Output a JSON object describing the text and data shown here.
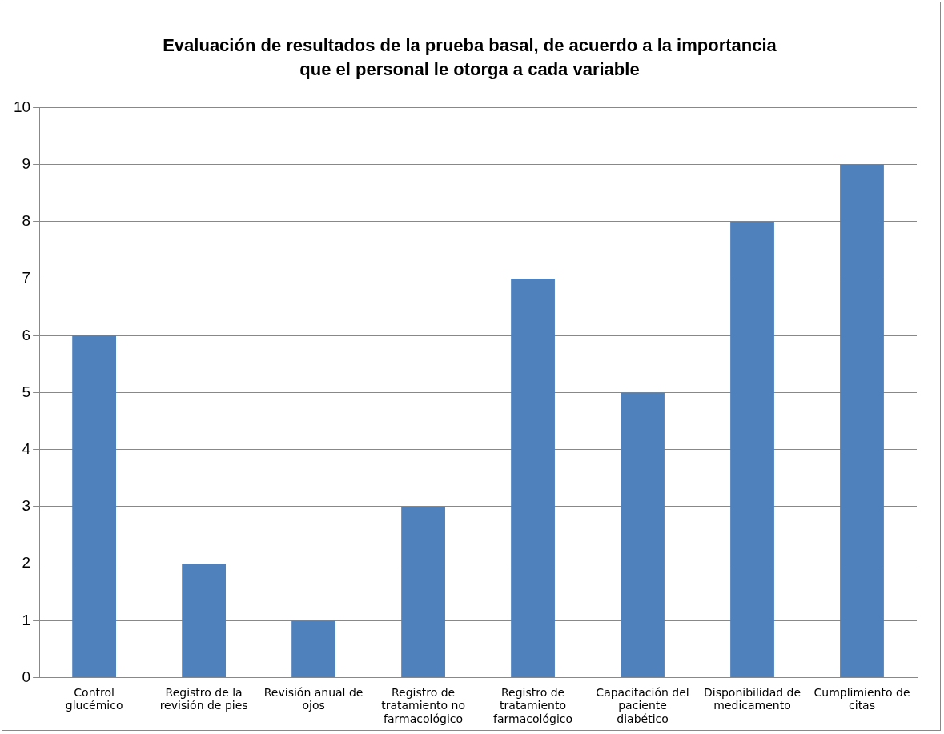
{
  "chart_data": {
    "type": "bar",
    "title": "Evaluación de resultados de la prueba basal, de acuerdo a la importancia que el personal le otorga a cada variable",
    "categories": [
      "Control glucémico",
      "Registro de la revisión de pies",
      "Revisión anual de ojos",
      "Registro de tratamiento no farmacológico",
      "Registro de tratamiento farmacológico",
      "Capacitación del paciente diabético",
      "Disponibilidad de medicamento",
      "Cumplimiento de citas"
    ],
    "values": [
      6,
      2,
      1,
      3,
      7,
      5,
      8,
      9
    ],
    "color": "#4f81bd",
    "ylim": [
      0,
      10
    ],
    "yticks": [
      0,
      1,
      2,
      3,
      4,
      5,
      6,
      7,
      8,
      9,
      10
    ],
    "grid": "y",
    "legend": false
  }
}
